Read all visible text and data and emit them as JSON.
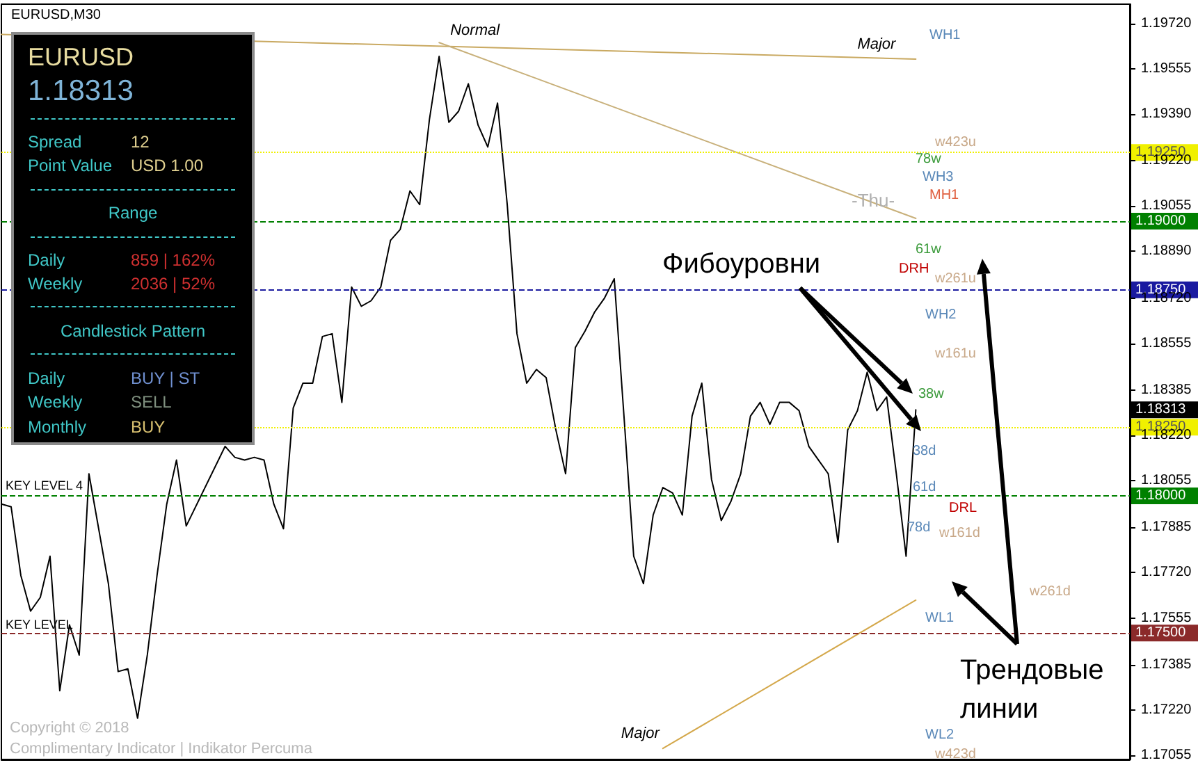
{
  "chart_data": {
    "type": "line",
    "title": "EURUSD,M30",
    "categories": [
      null,
      null,
      null,
      null,
      null,
      null,
      null,
      null,
      null,
      null,
      null,
      null,
      null,
      null,
      null,
      null,
      null,
      null,
      null,
      null,
      null,
      null,
      null,
      null,
      null,
      null,
      null,
      null,
      null,
      null,
      null,
      null,
      null,
      null,
      null,
      null,
      null,
      null,
      null,
      null,
      null,
      null,
      null,
      null,
      null,
      null,
      null,
      null,
      null,
      null,
      null,
      null,
      null,
      null,
      null,
      null,
      null,
      null,
      null,
      null,
      null,
      null,
      null,
      null,
      null,
      null,
      null,
      null,
      null,
      null,
      null,
      null,
      null,
      null,
      null,
      null,
      null,
      null,
      null,
      null,
      null,
      null,
      null,
      null,
      null,
      null,
      null,
      null,
      null,
      null,
      null,
      null,
      null,
      null,
      null
    ],
    "series": [
      {
        "name": "Major",
        "color": "#c9a961",
        "values": [
          1.1968,
          null,
          null,
          null,
          null,
          null,
          null,
          null,
          null,
          null,
          null,
          null,
          null,
          null,
          null,
          null,
          null,
          null,
          null,
          null,
          null,
          null,
          null,
          null,
          null,
          null,
          null,
          null,
          null,
          null,
          null,
          null,
          null,
          null,
          null,
          null,
          null,
          null,
          null,
          null,
          null,
          null,
          null,
          null,
          null,
          null,
          null,
          null,
          null,
          null,
          null,
          null,
          null,
          null,
          null,
          null,
          null,
          null,
          null,
          null,
          null,
          null,
          null,
          null,
          null,
          null,
          null,
          null,
          null,
          null,
          null,
          null,
          null,
          null,
          null,
          null,
          null,
          null,
          null,
          null,
          null,
          null,
          null,
          null,
          null,
          null,
          null,
          null,
          null,
          null,
          null,
          null,
          null,
          null,
          1.1959
        ]
      },
      {
        "color": "#000000",
        "values": [
          1.1797,
          1.1796,
          1.1771,
          1.1758,
          1.1763,
          1.1778,
          1.1729,
          1.1753,
          1.1742,
          1.1808,
          1.1788,
          1.1768,
          1.1736,
          1.1737,
          1.1719,
          1.1742,
          1.1771,
          1.1797,
          1.1813,
          1.1789,
          null,
          null,
          null,
          1.1818,
          1.1814,
          1.1813,
          1.1814,
          1.1813,
          1.1797,
          1.1788,
          1.1832,
          1.1841,
          1.1841,
          1.1858,
          1.1859,
          1.1834,
          1.1876,
          1.1869,
          1.1871,
          1.1876,
          1.1893,
          1.1897,
          1.1911,
          1.1906,
          1.1937,
          1.196,
          1.1936,
          1.194,
          1.195,
          1.1935,
          1.1927,
          1.1943,
          1.1906,
          1.1859,
          1.1841,
          1.1846,
          1.1843,
          1.1824,
          1.1808,
          1.1854,
          1.186,
          1.1867,
          1.1872,
          1.1879,
          1.1829,
          1.1778,
          1.1768,
          1.1793,
          1.1803,
          1.1801,
          1.1793,
          1.1829,
          1.1841,
          1.1806,
          1.1791,
          1.1798,
          1.1808,
          1.1829,
          1.1834,
          1.1826,
          1.1834,
          1.1834,
          1.1831,
          1.1818,
          1.1813,
          1.1808,
          1.1783,
          1.1824,
          1.1831,
          1.1845,
          1.1831,
          1.1836,
          1.1808,
          1.1778,
          1.18313
        ]
      },
      {
        "name": "Normal",
        "color": "#c8b07a",
        "values": [
          null,
          null,
          null,
          null,
          null,
          null,
          null,
          null,
          null,
          null,
          null,
          null,
          null,
          null,
          null,
          null,
          null,
          null,
          null,
          null,
          null,
          null,
          null,
          null,
          null,
          null,
          null,
          null,
          null,
          null,
          null,
          null,
          null,
          null,
          null,
          null,
          null,
          null,
          null,
          null,
          null,
          null,
          null,
          null,
          null,
          1.1965,
          null,
          null,
          null,
          null,
          null,
          null,
          null,
          null,
          null,
          null,
          null,
          null,
          null,
          null,
          null,
          null,
          null,
          null,
          null,
          null,
          null,
          null,
          null,
          null,
          null,
          null,
          null,
          null,
          null,
          null,
          null,
          null,
          null,
          null,
          null,
          null,
          null,
          null,
          null,
          null,
          null,
          null,
          null,
          null,
          null,
          null,
          null,
          null,
          1.1901
        ]
      },
      {
        "name": "Major",
        "color": "#d4a84b",
        "values": [
          null,
          null,
          null,
          null,
          null,
          null,
          null,
          null,
          null,
          null,
          null,
          null,
          null,
          null,
          null,
          null,
          null,
          null,
          null,
          null,
          null,
          null,
          null,
          null,
          null,
          null,
          null,
          null,
          null,
          null,
          null,
          null,
          null,
          null,
          null,
          null,
          null,
          null,
          null,
          null,
          null,
          null,
          null,
          null,
          null,
          null,
          null,
          null,
          null,
          null,
          null,
          null,
          null,
          null,
          null,
          null,
          null,
          null,
          null,
          null,
          null,
          null,
          null,
          null,
          null,
          null,
          null,
          null,
          1.1708,
          null,
          null,
          null,
          null,
          null,
          null,
          null,
          null,
          null,
          null,
          null,
          null,
          null,
          null,
          null,
          null,
          null,
          null,
          null,
          null,
          null,
          null,
          null,
          null,
          null,
          1.1762
        ]
      }
    ],
    "ylim": [
      1.1704,
      1.1979
    ],
    "yticks": [
      1.17055,
      {
        "value": 1.1722,
        "label": "1.17220"
      },
      1.17385,
      1.17555,
      {
        "value": 1.1772,
        "label": "1.17720"
      },
      1.17885,
      1.18055,
      {
        "value": 1.1822,
        "label": "1.18220"
      },
      1.18385,
      1.18555,
      {
        "value": 1.1872,
        "label": "1.18720"
      },
      {
        "value": 1.1889,
        "label": "1.18890"
      },
      1.19055,
      {
        "value": 1.1922,
        "label": "1.19220"
      },
      {
        "value": 1.1939,
        "label": "1.19390"
      },
      1.19555,
      {
        "value": 1.1972,
        "label": "1.19720"
      }
    ],
    "tick_labels": "y",
    "marker": "none",
    "line_style": "solid",
    "ref_lines": [
      {
        "axis": "y",
        "value": 1.1925,
        "label": "1.19250",
        "color": "#f0f000",
        "line_style": "dotted"
      },
      {
        "axis": "y",
        "value": 1.19,
        "label": "1.19000",
        "color": "#008000",
        "line_style": "dashed"
      },
      {
        "axis": "y",
        "value": 1.1875,
        "label": "1.18750",
        "color": "#1a1aa0",
        "line_style": "dashed"
      },
      {
        "axis": "y",
        "value": 1.1825,
        "label": "1.18250",
        "color": "#f0f000",
        "line_style": "dotted"
      },
      {
        "axis": "y",
        "value": 1.18,
        "label": "1.18000",
        "color": "#008000",
        "line_style": "dashed"
      },
      {
        "axis": "y",
        "value": 1.175,
        "label": "1.17500",
        "color": "#8b2a2a",
        "line_style": "dashed"
      }
    ],
    "annotations": [
      "EURUSD",
      "1.18313",
      "Spread",
      "12",
      "Point Value",
      "USD 1.00",
      "Range",
      "Daily",
      "859 | 162%",
      "Weekly",
      "2036 | 52%",
      "Candlestick Pattern",
      "Daily",
      "BUY | ST",
      "Weekly",
      "SELL",
      "Monthly",
      "BUY",
      "Copyright © 2018",
      "Complimentary Indicator | Indikator Percuma",
      "Фибоуровни",
      "Трендовые линии",
      "-Thu-",
      "KEY LEVEL 4",
      "KEY LEVEL",
      "WH1",
      "w423u",
      "78w",
      "WH3",
      "MH1",
      "61w",
      "DRH",
      "w261u",
      "WH2",
      "w161u",
      "38w",
      "38d",
      "61d",
      "DRL",
      "78d",
      "w161d",
      "w261d",
      "WL1",
      "WL2",
      "w423d"
    ]
  }
}
